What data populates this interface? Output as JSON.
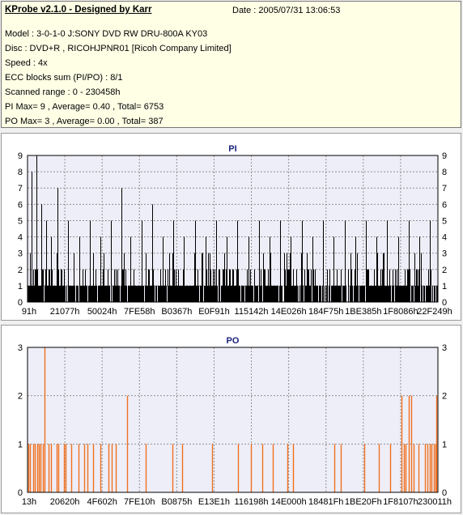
{
  "header": {
    "title": "KProbe v2.1.0 - Designed by Karr",
    "date": "Date : 2005/07/31 13:06:53",
    "lines": [
      "Model : 3-0-1-0 J:SONY    DVD RW DRU-800A  KY03",
      "Disc : DVD+R , RICOHJPNR01 [Ricoh Company Limited]",
      "Speed : 4x",
      "ECC blocks sum (PI/PO) : 8/1",
      "Scanned range : 0 - 230458h",
      "PI Max= 9 , Average= 0.40 , Total= 6753",
      "PO Max= 3 , Average= 0.00 , Total= 387"
    ]
  },
  "colors": {
    "pi_bar": "#000000",
    "po_bar": "#f07020",
    "plot_bg": "#eeeef8",
    "grid": "#909090",
    "title": "#1a237e",
    "info_bg": "#ffffe6"
  },
  "chart_data": [
    {
      "type": "bar",
      "title": "PI",
      "ylim": [
        0,
        9
      ],
      "yticks": [
        0,
        1,
        2,
        3,
        4,
        5,
        6,
        7,
        8,
        9
      ],
      "xlim": [
        145,
        230458
      ],
      "xticks": [
        "91h",
        "21077h",
        "50024h",
        "7FE58h",
        "B0367h",
        "E0F91h",
        "115142h",
        "14E026h",
        "184F75h",
        "1BE385h",
        "1F8086h",
        "22F249h"
      ],
      "grid": true,
      "peaks": [
        {
          "x": 2400,
          "value": 8
        },
        {
          "x": 5000,
          "value": 9
        },
        {
          "x": 8000,
          "value": 6
        },
        {
          "x": 10500,
          "value": 5
        },
        {
          "x": 13500,
          "value": 4
        },
        {
          "x": 17000,
          "value": 7
        },
        {
          "x": 23000,
          "value": 5
        },
        {
          "x": 29000,
          "value": 4
        },
        {
          "x": 35000,
          "value": 5
        },
        {
          "x": 41000,
          "value": 4
        },
        {
          "x": 47000,
          "value": 5
        },
        {
          "x": 53000,
          "value": 7
        },
        {
          "x": 58000,
          "value": 4
        },
        {
          "x": 64000,
          "value": 5
        },
        {
          "x": 70000,
          "value": 6
        },
        {
          "x": 76000,
          "value": 4
        },
        {
          "x": 82000,
          "value": 5
        },
        {
          "x": 88000,
          "value": 4
        },
        {
          "x": 94000,
          "value": 5
        },
        {
          "x": 100000,
          "value": 4
        },
        {
          "x": 106000,
          "value": 5
        },
        {
          "x": 112000,
          "value": 4
        },
        {
          "x": 118000,
          "value": 5
        },
        {
          "x": 124000,
          "value": 4
        },
        {
          "x": 130000,
          "value": 5
        },
        {
          "x": 136000,
          "value": 4
        },
        {
          "x": 142000,
          "value": 5
        },
        {
          "x": 148000,
          "value": 4
        },
        {
          "x": 154000,
          "value": 5
        },
        {
          "x": 160000,
          "value": 4
        },
        {
          "x": 166000,
          "value": 5
        },
        {
          "x": 172000,
          "value": 4
        },
        {
          "x": 178000,
          "value": 5
        },
        {
          "x": 184000,
          "value": 4
        },
        {
          "x": 190000,
          "value": 5
        },
        {
          "x": 196000,
          "value": 4
        },
        {
          "x": 202000,
          "value": 5
        },
        {
          "x": 208000,
          "value": 4
        },
        {
          "x": 214000,
          "value": 5
        },
        {
          "x": 220000,
          "value": 4
        },
        {
          "x": 226000,
          "value": 5
        }
      ]
    },
    {
      "type": "bar",
      "title": "PO",
      "ylim": [
        0,
        3
      ],
      "yticks": [
        0,
        1,
        2,
        3
      ],
      "xlim": [
        19,
        230458
      ],
      "xticks": [
        "13h",
        "20620h",
        "4F602h",
        "7FE10h",
        "B0875h",
        "E13E1h",
        "116198h",
        "14E000h",
        "18481Fh",
        "1BE20Fh",
        "1F8107h",
        "230011h"
      ],
      "grid": true,
      "points": [
        {
          "x": 600,
          "value": 1
        },
        {
          "x": 1400,
          "value": 1
        },
        {
          "x": 3200,
          "value": 1
        },
        {
          "x": 4300,
          "value": 1
        },
        {
          "x": 5300,
          "value": 1
        },
        {
          "x": 6300,
          "value": 1
        },
        {
          "x": 7400,
          "value": 1
        },
        {
          "x": 8600,
          "value": 1
        },
        {
          "x": 9400,
          "value": 3
        },
        {
          "x": 11800,
          "value": 1
        },
        {
          "x": 13300,
          "value": 1
        },
        {
          "x": 16200,
          "value": 1
        },
        {
          "x": 17300,
          "value": 1
        },
        {
          "x": 20300,
          "value": 1
        },
        {
          "x": 21400,
          "value": 1
        },
        {
          "x": 24700,
          "value": 1
        },
        {
          "x": 28600,
          "value": 1
        },
        {
          "x": 31800,
          "value": 1
        },
        {
          "x": 33600,
          "value": 1
        },
        {
          "x": 37000,
          "value": 1
        },
        {
          "x": 41100,
          "value": 1
        },
        {
          "x": 45500,
          "value": 1
        },
        {
          "x": 47400,
          "value": 1
        },
        {
          "x": 49600,
          "value": 1
        },
        {
          "x": 55800,
          "value": 2
        },
        {
          "x": 66600,
          "value": 1
        },
        {
          "x": 81200,
          "value": 1
        },
        {
          "x": 87000,
          "value": 1
        },
        {
          "x": 103600,
          "value": 1
        },
        {
          "x": 118300,
          "value": 1
        },
        {
          "x": 125300,
          "value": 1
        },
        {
          "x": 131700,
          "value": 1
        },
        {
          "x": 137600,
          "value": 1
        },
        {
          "x": 146000,
          "value": 1
        },
        {
          "x": 148900,
          "value": 1
        },
        {
          "x": 172500,
          "value": 1
        },
        {
          "x": 176000,
          "value": 1
        },
        {
          "x": 189200,
          "value": 1
        },
        {
          "x": 197400,
          "value": 1
        },
        {
          "x": 203500,
          "value": 1
        },
        {
          "x": 209800,
          "value": 2
        },
        {
          "x": 211400,
          "value": 1
        },
        {
          "x": 212500,
          "value": 1
        },
        {
          "x": 214000,
          "value": 2
        },
        {
          "x": 215300,
          "value": 2
        },
        {
          "x": 216900,
          "value": 1
        },
        {
          "x": 219500,
          "value": 1
        },
        {
          "x": 223400,
          "value": 1
        },
        {
          "x": 224600,
          "value": 1
        },
        {
          "x": 225800,
          "value": 1
        },
        {
          "x": 227000,
          "value": 1
        },
        {
          "x": 228100,
          "value": 1
        },
        {
          "x": 228900,
          "value": 1
        },
        {
          "x": 229600,
          "value": 2
        }
      ]
    }
  ]
}
